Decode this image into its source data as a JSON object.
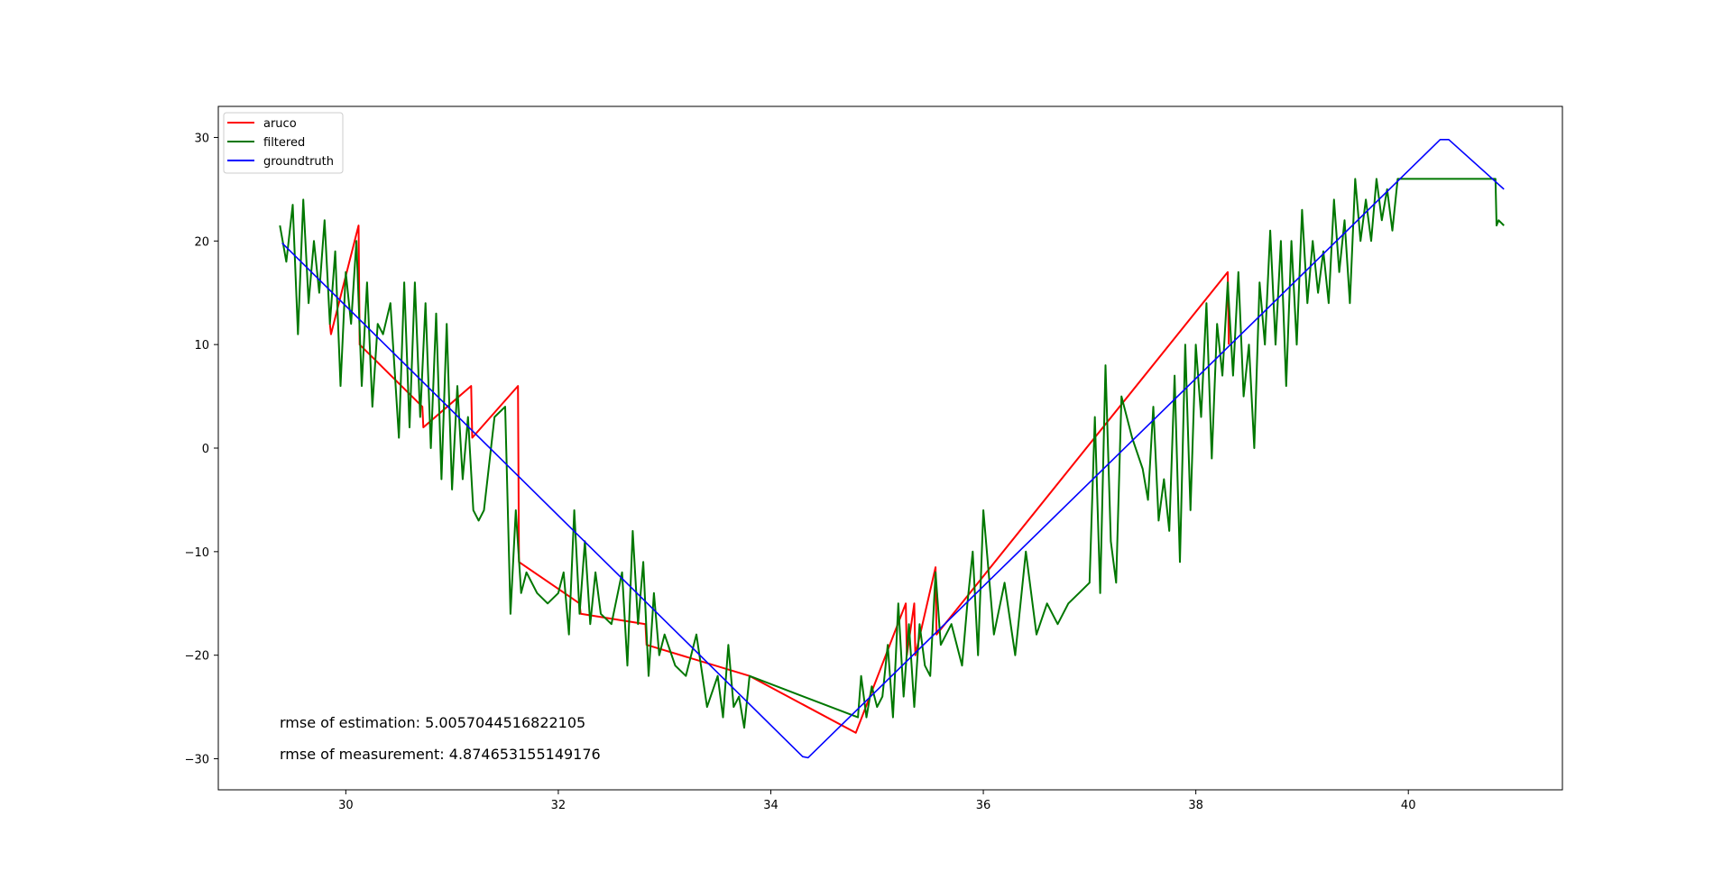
{
  "chart_data": {
    "type": "line",
    "title": "",
    "xlabel": "",
    "ylabel": "",
    "xlim": [
      28.8,
      41.45
    ],
    "ylim": [
      -33,
      33
    ],
    "x_ticks": [
      30,
      32,
      34,
      36,
      38,
      40
    ],
    "y_ticks": [
      -30,
      -20,
      -10,
      0,
      10,
      20,
      30
    ],
    "x_tick_labels": [
      "30",
      "32",
      "34",
      "36",
      "38",
      "40"
    ],
    "y_tick_labels": [
      "−30",
      "−20",
      "−10",
      "0",
      "10",
      "20",
      "30"
    ],
    "grid": false,
    "legend": {
      "position": "top-left",
      "entries": [
        "aruco",
        "filtered",
        "groundtruth"
      ]
    },
    "annotations": [
      "rmse of estimation: 5.0057044516822105",
      "rmse of measurement: 4.874653155149176"
    ],
    "series": [
      {
        "name": "groundtruth",
        "color": "#0000ff",
        "x": [
          29.4,
          34.3,
          34.35,
          40.3,
          40.38,
          40.9
        ],
        "y": [
          19.8,
          -29.8,
          -29.9,
          29.8,
          29.8,
          25
        ]
      },
      {
        "name": "aruco",
        "color": "#ff0000",
        "x": [
          29.85,
          29.86,
          30.12,
          30.13,
          30.72,
          30.73,
          31.18,
          31.19,
          31.62,
          31.63,
          32.2,
          32.21,
          32.82,
          32.83,
          33.8,
          34.8,
          35.27,
          35.28,
          35.35,
          35.36,
          35.55,
          35.56,
          38.3,
          38.31
        ],
        "y": [
          12,
          11,
          21.5,
          10,
          4,
          2,
          6,
          1,
          6,
          -11,
          -15,
          -16,
          -17,
          -19,
          -22,
          -27.5,
          -15,
          -20,
          -15,
          -20,
          -11.5,
          -18,
          17,
          10
        ]
      },
      {
        "name": "filtered",
        "color": "#007700",
        "x": [
          29.38,
          29.44,
          29.5,
          29.55,
          29.6,
          29.65,
          29.7,
          29.75,
          29.8,
          29.85,
          29.9,
          29.95,
          30.0,
          30.05,
          30.1,
          30.15,
          30.2,
          30.25,
          30.3,
          30.35,
          30.42,
          30.5,
          30.55,
          30.6,
          30.65,
          30.7,
          30.75,
          30.8,
          30.85,
          30.9,
          30.95,
          31.0,
          31.05,
          31.1,
          31.15,
          31.2,
          31.25,
          31.3,
          31.4,
          31.5,
          31.55,
          31.6,
          31.65,
          31.7,
          31.8,
          31.9,
          32.0,
          32.05,
          32.1,
          32.15,
          32.2,
          32.25,
          32.3,
          32.35,
          32.4,
          32.5,
          32.6,
          32.65,
          32.7,
          32.75,
          32.8,
          32.85,
          32.9,
          32.95,
          33.0,
          33.1,
          33.2,
          33.3,
          33.4,
          33.5,
          33.55,
          33.6,
          33.65,
          33.7,
          33.75,
          33.8,
          34.82,
          34.85,
          34.9,
          34.95,
          35.0,
          35.05,
          35.1,
          35.15,
          35.2,
          35.25,
          35.3,
          35.35,
          35.4,
          35.45,
          35.5,
          35.55,
          35.6,
          35.7,
          35.8,
          35.85,
          35.9,
          35.95,
          36.0,
          36.1,
          36.2,
          36.3,
          36.35,
          36.4,
          36.5,
          36.6,
          36.7,
          36.8,
          36.9,
          37.0,
          37.05,
          37.1,
          37.15,
          37.2,
          37.25,
          37.3,
          37.35,
          37.4,
          37.5,
          37.55,
          37.6,
          37.65,
          37.7,
          37.75,
          37.8,
          37.85,
          37.9,
          37.95,
          38.0,
          38.05,
          38.1,
          38.15,
          38.2,
          38.25,
          38.3,
          38.35,
          38.4,
          38.45,
          38.5,
          38.55,
          38.6,
          38.65,
          38.7,
          38.75,
          38.8,
          38.85,
          38.9,
          38.95,
          39.0,
          39.05,
          39.1,
          39.15,
          39.2,
          39.25,
          39.3,
          39.35,
          39.4,
          39.45,
          39.5,
          39.55,
          39.6,
          39.65,
          39.7,
          39.75,
          39.8,
          39.85,
          39.9,
          40.82,
          40.83,
          40.85,
          40.9
        ],
        "y": [
          21.5,
          18,
          23.5,
          11,
          24,
          14,
          20,
          15,
          22,
          12,
          19,
          6,
          17,
          12,
          20,
          6,
          16,
          4,
          12,
          11,
          14,
          1,
          16,
          2,
          16,
          3,
          14,
          0,
          13,
          -3,
          12,
          -4,
          6,
          -3,
          3,
          -6,
          -7,
          -6,
          3,
          4,
          -16,
          -6,
          -14,
          -12,
          -14,
          -15,
          -14,
          -12,
          -18,
          -6,
          -16,
          -9,
          -17,
          -12,
          -16,
          -17,
          -12,
          -21,
          -8,
          -17,
          -11,
          -22,
          -14,
          -20,
          -18,
          -21,
          -22,
          -18,
          -25,
          -22,
          -26,
          -19,
          -25,
          -24,
          -27,
          -22,
          -26,
          -22,
          -26,
          -23,
          -25,
          -24,
          -19,
          -26,
          -15,
          -24,
          -17,
          -25,
          -17,
          -21,
          -22,
          -12,
          -19,
          -17,
          -21,
          -15,
          -10,
          -20,
          -6,
          -18,
          -13,
          -20,
          -15,
          -10,
          -18,
          -15,
          -17,
          -15,
          -14,
          -13,
          3,
          -14,
          8,
          -9,
          -13,
          5,
          3,
          1,
          -2,
          -5,
          4,
          -7,
          -3,
          -8,
          7,
          -11,
          10,
          -6,
          10,
          3,
          14,
          -1,
          12,
          7,
          16,
          7,
          17,
          5,
          10,
          0,
          16,
          10,
          21,
          10,
          20,
          6,
          20,
          10,
          23,
          14,
          20,
          15,
          19,
          14,
          24,
          17,
          22,
          14,
          26,
          20,
          24,
          20,
          26,
          22,
          25,
          21,
          26,
          26,
          21.5,
          22,
          21.5
        ]
      }
    ]
  }
}
